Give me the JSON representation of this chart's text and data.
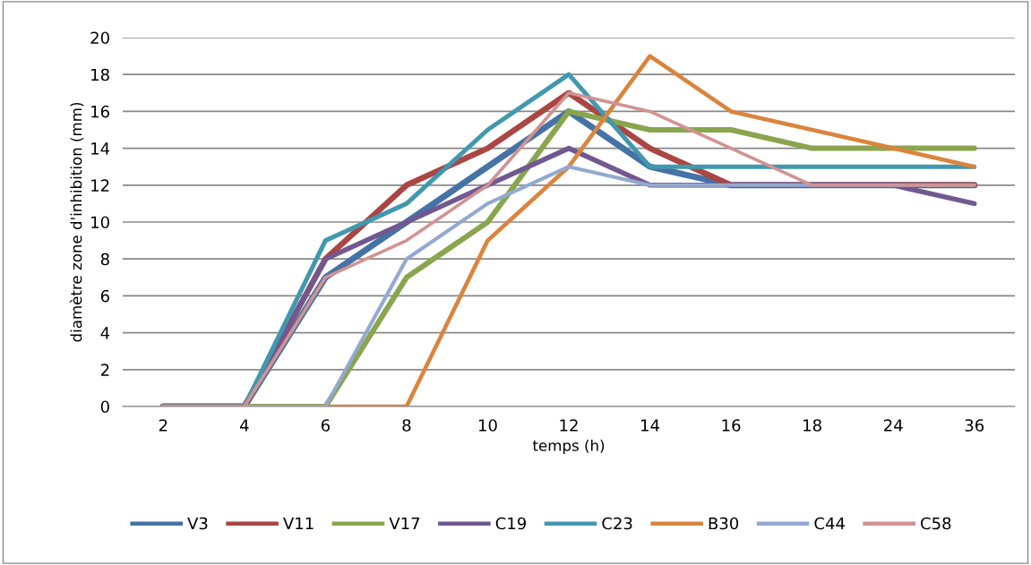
{
  "chart_data": {
    "type": "line",
    "xlabel": "temps (h)",
    "ylabel": "diamètre zone d'inhibition (mm)",
    "categories": [
      "2",
      "4",
      "6",
      "8",
      "10",
      "12",
      "14",
      "16",
      "18",
      "24",
      "36"
    ],
    "ylim": [
      0,
      20
    ],
    "yticks": [
      0,
      2,
      4,
      6,
      8,
      10,
      12,
      14,
      16,
      18,
      20
    ],
    "grid": "y",
    "legend": "bottom",
    "marker": "none",
    "line_style": "solid",
    "series": [
      {
        "name": "V3",
        "color": "#4572a7",
        "values": [
          0,
          0,
          7,
          10,
          13,
          16,
          13,
          12,
          12,
          12,
          12
        ]
      },
      {
        "name": "V11",
        "color": "#aa4643",
        "values": [
          0,
          0,
          8,
          12,
          14,
          17,
          14,
          12,
          12,
          12,
          12
        ]
      },
      {
        "name": "V17",
        "color": "#89a54e",
        "values": [
          0,
          0,
          0,
          7,
          10,
          16,
          15,
          15,
          14,
          14,
          14
        ]
      },
      {
        "name": "C19",
        "color": "#71588f",
        "values": [
          0,
          0,
          8,
          10,
          12,
          14,
          12,
          12,
          12,
          12,
          11
        ]
      },
      {
        "name": "C23",
        "color": "#4198af",
        "values": [
          0,
          0,
          9,
          11,
          15,
          18,
          13,
          13,
          13,
          13,
          13
        ]
      },
      {
        "name": "B30",
        "color": "#db843d",
        "values": [
          0,
          0,
          0,
          0,
          9,
          13,
          19,
          16,
          15,
          14,
          13
        ]
      },
      {
        "name": "C44",
        "color": "#93a9cf",
        "values": [
          0,
          0,
          0,
          8,
          11,
          13,
          12,
          12,
          12,
          12,
          12
        ]
      },
      {
        "name": "C58",
        "color": "#d19392",
        "values": [
          0,
          0,
          7,
          9,
          12,
          17,
          16,
          14,
          12,
          12,
          12
        ]
      }
    ]
  }
}
